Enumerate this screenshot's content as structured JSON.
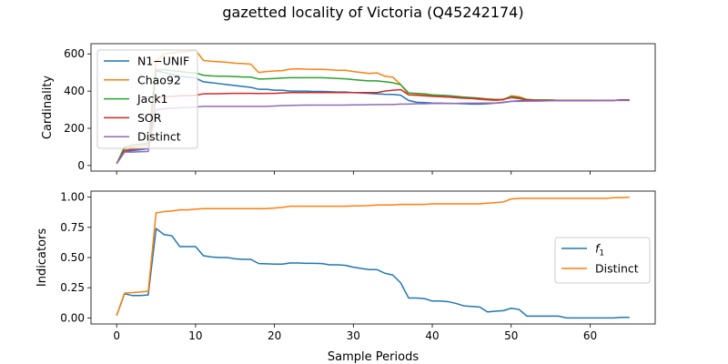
{
  "figure": {
    "title": "gazetted locality of Victoria (Q45242174)"
  },
  "chart_data": [
    {
      "type": "line",
      "ylabel": "Cardinality",
      "xlabel": "",
      "xlim": [
        -3.25,
        68.25
      ],
      "ylim": [
        -30,
        655
      ],
      "xticks": [
        0,
        10,
        20,
        30,
        40,
        50,
        60
      ],
      "yticks": [
        0,
        200,
        400,
        600
      ],
      "ytick_labels": [
        "0",
        "200",
        "400",
        "600"
      ],
      "show_x_tick_labels": false,
      "legend_position": "upper-left",
      "x": [
        0,
        1,
        2,
        3,
        4,
        5,
        6,
        7,
        8,
        9,
        10,
        11,
        12,
        13,
        14,
        15,
        16,
        17,
        18,
        19,
        20,
        21,
        22,
        23,
        24,
        25,
        26,
        27,
        28,
        29,
        30,
        31,
        32,
        33,
        34,
        35,
        36,
        37,
        38,
        39,
        40,
        41,
        42,
        43,
        44,
        45,
        46,
        47,
        48,
        49,
        50,
        51,
        52,
        53,
        54,
        55,
        56,
        57,
        58,
        59,
        60,
        61,
        62,
        63,
        64,
        65
      ],
      "series": [
        {
          "name": "N1−UNIF",
          "color": "#1f77b4",
          "values": [
            10,
            75,
            80,
            85,
            90,
            510,
            500,
            490,
            480,
            475,
            470,
            450,
            445,
            440,
            435,
            430,
            425,
            420,
            410,
            410,
            405,
            405,
            400,
            400,
            400,
            398,
            398,
            397,
            395,
            395,
            392,
            390,
            388,
            385,
            383,
            382,
            378,
            350,
            340,
            338,
            336,
            335,
            334,
            333,
            332,
            330,
            330,
            332,
            335,
            340,
            345,
            348,
            350,
            350,
            350,
            350,
            350,
            350,
            350,
            350,
            350,
            350,
            350,
            350,
            352,
            352
          ]
        },
        {
          "name": "Chao92",
          "color": "#ff7f0e",
          "values": [
            10,
            90,
            100,
            105,
            110,
            560,
            600,
            605,
            610,
            612,
            620,
            565,
            560,
            558,
            555,
            550,
            548,
            545,
            500,
            505,
            508,
            510,
            518,
            520,
            518,
            517,
            517,
            515,
            512,
            512,
            505,
            500,
            495,
            498,
            480,
            475,
            435,
            380,
            380,
            378,
            375,
            370,
            368,
            365,
            362,
            360,
            355,
            352,
            350,
            352,
            375,
            370,
            355,
            352,
            352,
            352,
            350,
            350,
            350,
            350,
            350,
            350,
            350,
            350,
            352,
            352
          ]
        },
        {
          "name": "Jack1",
          "color": "#2ca02c",
          "values": [
            10,
            100,
            110,
            115,
            120,
            515,
            515,
            510,
            505,
            500,
            498,
            485,
            482,
            480,
            480,
            478,
            476,
            475,
            465,
            466,
            468,
            470,
            472,
            472,
            472,
            472,
            472,
            470,
            468,
            466,
            462,
            458,
            455,
            455,
            450,
            445,
            435,
            390,
            388,
            385,
            380,
            378,
            376,
            372,
            368,
            365,
            362,
            358,
            355,
            356,
            370,
            365,
            355,
            352,
            352,
            352,
            350,
            350,
            350,
            350,
            350,
            350,
            350,
            350,
            352,
            352
          ]
        },
        {
          "name": "SOR",
          "color": "#d62728",
          "values": [
            10,
            80,
            88,
            92,
            95,
            370,
            370,
            372,
            375,
            376,
            378,
            385,
            386,
            386,
            387,
            388,
            388,
            388,
            387,
            388,
            388,
            390,
            392,
            392,
            392,
            392,
            392,
            392,
            392,
            392,
            392,
            392,
            392,
            392,
            400,
            405,
            408,
            380,
            378,
            375,
            372,
            370,
            368,
            365,
            362,
            360,
            358,
            355,
            352,
            356,
            365,
            360,
            352,
            350,
            350,
            350,
            350,
            350,
            350,
            350,
            350,
            350,
            350,
            350,
            352,
            352
          ]
        },
        {
          "name": "Distinct",
          "color": "#9467bd",
          "values": [
            10,
            72,
            72,
            74,
            75,
            300,
            305,
            308,
            310,
            312,
            314,
            318,
            318,
            318,
            318,
            318,
            318,
            318,
            318,
            318,
            320,
            322,
            323,
            324,
            325,
            325,
            325,
            325,
            325,
            325,
            326,
            326,
            327,
            327,
            328,
            328,
            330,
            330,
            332,
            332,
            333,
            333,
            334,
            334,
            335,
            335,
            335,
            336,
            336,
            338,
            345,
            345,
            346,
            346,
            347,
            348,
            348,
            348,
            348,
            348,
            348,
            349,
            349,
            350,
            350,
            350
          ]
        }
      ]
    },
    {
      "type": "line",
      "ylabel": "Indicators",
      "xlabel": "Sample Periods",
      "xlim": [
        -3.25,
        68.25
      ],
      "ylim": [
        -0.05,
        1.05
      ],
      "xticks": [
        0,
        10,
        20,
        30,
        40,
        50,
        60
      ],
      "xtick_labels": [
        "0",
        "10",
        "20",
        "30",
        "40",
        "50",
        "60"
      ],
      "yticks": [
        0,
        0.25,
        0.5,
        0.75,
        1.0
      ],
      "ytick_labels": [
        "0.00",
        "0.25",
        "0.50",
        "0.75",
        "1.00"
      ],
      "show_x_tick_labels": true,
      "legend_position": "center-right",
      "x": [
        0,
        1,
        2,
        3,
        4,
        5,
        6,
        7,
        8,
        9,
        10,
        11,
        12,
        13,
        14,
        15,
        16,
        17,
        18,
        19,
        20,
        21,
        22,
        23,
        24,
        25,
        26,
        27,
        28,
        29,
        30,
        31,
        32,
        33,
        34,
        35,
        36,
        37,
        38,
        39,
        40,
        41,
        42,
        43,
        44,
        45,
        46,
        47,
        48,
        49,
        50,
        51,
        52,
        53,
        54,
        55,
        56,
        57,
        58,
        59,
        60,
        61,
        62,
        63,
        64,
        65
      ],
      "series": [
        {
          "name": "f1",
          "color": "#1f77b4",
          "values": [
            0.02,
            0.2,
            0.185,
            0.185,
            0.19,
            0.74,
            0.69,
            0.68,
            0.59,
            0.59,
            0.59,
            0.515,
            0.505,
            0.5,
            0.5,
            0.49,
            0.485,
            0.485,
            0.45,
            0.448,
            0.445,
            0.445,
            0.455,
            0.455,
            0.452,
            0.452,
            0.45,
            0.44,
            0.44,
            0.435,
            0.42,
            0.41,
            0.4,
            0.4,
            0.37,
            0.355,
            0.29,
            0.165,
            0.165,
            0.16,
            0.14,
            0.14,
            0.135,
            0.12,
            0.1,
            0.095,
            0.09,
            0.05,
            0.055,
            0.06,
            0.08,
            0.07,
            0.015,
            0.015,
            0.015,
            0.015,
            0.015,
            0.0,
            0.0,
            0.0,
            0.0,
            0.0,
            0.0,
            0.0,
            0.005,
            0.005
          ]
        },
        {
          "name": "Distinct",
          "color": "#ff7f0e",
          "values": [
            0.02,
            0.205,
            0.21,
            0.215,
            0.22,
            0.87,
            0.88,
            0.885,
            0.895,
            0.895,
            0.9,
            0.905,
            0.905,
            0.905,
            0.905,
            0.905,
            0.905,
            0.905,
            0.905,
            0.905,
            0.91,
            0.915,
            0.925,
            0.925,
            0.925,
            0.925,
            0.925,
            0.925,
            0.925,
            0.925,
            0.928,
            0.928,
            0.93,
            0.935,
            0.935,
            0.935,
            0.94,
            0.94,
            0.94,
            0.94,
            0.945,
            0.945,
            0.945,
            0.945,
            0.945,
            0.945,
            0.945,
            0.95,
            0.955,
            0.96,
            0.985,
            0.99,
            0.99,
            0.99,
            0.99,
            0.99,
            0.99,
            0.99,
            0.99,
            0.99,
            0.99,
            0.99,
            0.99,
            0.995,
            0.995,
            1.0
          ]
        }
      ]
    }
  ]
}
